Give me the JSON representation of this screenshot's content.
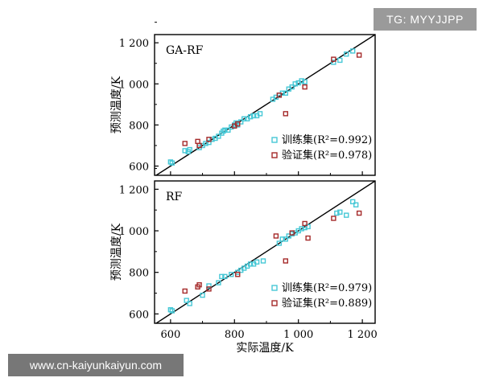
{
  "watermarks": {
    "top_right": "TG: MYYJJPP",
    "bottom_left": "www.cn-kaiyunkaiyun.com"
  },
  "colors": {
    "train": "#47c8d6",
    "test": "#a52a2a",
    "line": "#000000",
    "axis": "#000000"
  },
  "shared_x": {
    "label": "实际温度/K",
    "ticks": [
      600,
      800,
      "1 000",
      "1 200"
    ],
    "tick_values": [
      600,
      800,
      1000,
      1200
    ],
    "range": [
      550,
      1240
    ]
  },
  "chart_data": [
    {
      "type": "scatter",
      "title": "GA-RF",
      "ylabel": "预测温度/K",
      "xlim": [
        550,
        1240
      ],
      "ylim": [
        555,
        1240
      ],
      "yticks": [
        600,
        800,
        "1 000",
        "1 200"
      ],
      "ytick_values": [
        600,
        800,
        1000,
        1200
      ],
      "legend": [
        {
          "label": "训练集(R²=0.992)",
          "series": "train"
        },
        {
          "label": "验证集(R²=0.978)",
          "series": "test"
        }
      ],
      "series": [
        {
          "name": "训练集",
          "x": [
            600,
            605,
            645,
            655,
            660,
            690,
            700,
            710,
            720,
            730,
            740,
            750,
            760,
            765,
            770,
            780,
            790,
            800,
            805,
            810,
            820,
            830,
            840,
            850,
            860,
            870,
            880,
            920,
            930,
            940,
            950,
            960,
            970,
            980,
            990,
            1000,
            1010,
            1020,
            1110,
            1130,
            1150,
            1170
          ],
          "y": [
            620,
            615,
            675,
            670,
            680,
            690,
            700,
            710,
            715,
            730,
            735,
            745,
            760,
            770,
            775,
            775,
            790,
            800,
            810,
            800,
            815,
            830,
            830,
            840,
            845,
            845,
            855,
            925,
            935,
            945,
            955,
            955,
            975,
            985,
            1000,
            1005,
            1015,
            1010,
            1105,
            1115,
            1145,
            1160
          ]
        },
        {
          "name": "验证集",
          "x": [
            645,
            685,
            690,
            720,
            800,
            810,
            940,
            960,
            1020,
            1110,
            1190
          ],
          "y": [
            710,
            720,
            700,
            730,
            795,
            805,
            945,
            855,
            985,
            1120,
            1140
          ]
        }
      ]
    },
    {
      "type": "scatter",
      "title": "RF",
      "ylabel": "预测温度/K",
      "xlim": [
        550,
        1240
      ],
      "ylim": [
        555,
        1240
      ],
      "yticks": [
        600,
        800,
        "1 000",
        "1 200"
      ],
      "ytick_values": [
        600,
        800,
        1000,
        1200
      ],
      "legend": [
        {
          "label": "训练集(R²=0.979)",
          "series": "train"
        },
        {
          "label": "验证集(R²=0.889)",
          "series": "test"
        }
      ],
      "series": [
        {
          "name": "训练集",
          "x": [
            600,
            605,
            650,
            660,
            700,
            720,
            750,
            760,
            770,
            790,
            810,
            820,
            830,
            840,
            850,
            860,
            870,
            890,
            940,
            950,
            960,
            970,
            980,
            990,
            1000,
            1010,
            1020,
            1030,
            1120,
            1130,
            1150,
            1170,
            1180
          ],
          "y": [
            620,
            615,
            665,
            650,
            690,
            735,
            750,
            780,
            780,
            790,
            800,
            810,
            820,
            830,
            840,
            840,
            850,
            855,
            940,
            960,
            960,
            975,
            985,
            990,
            1000,
            1010,
            1015,
            1020,
            1085,
            1090,
            1075,
            1140,
            1125
          ],
          "markers": []
        },
        {
          "name": "验证集",
          "x": [
            645,
            685,
            690,
            720,
            810,
            930,
            960,
            980,
            1020,
            1030,
            1110,
            1190
          ],
          "y": [
            710,
            730,
            740,
            720,
            790,
            975,
            855,
            990,
            1035,
            965,
            1060,
            1085
          ]
        }
      ]
    }
  ]
}
